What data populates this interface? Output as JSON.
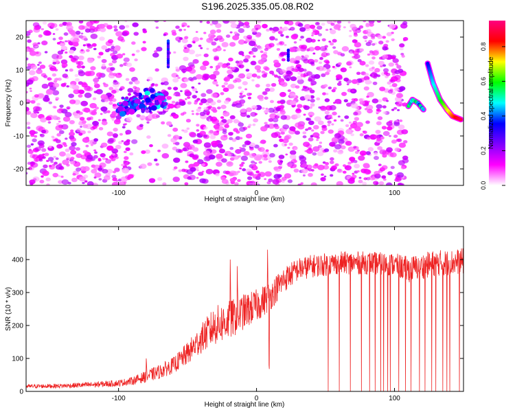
{
  "figure_title": "S196.2025.335.05.08.R02",
  "chart_data": [
    {
      "type": "heatmap",
      "title": "",
      "xlabel": "Height of straight line (km)",
      "ylabel": "Frequency (Hz)",
      "xlim": [
        -167,
        150
      ],
      "ylim": [
        -25,
        25
      ],
      "xticks": [
        -100,
        0,
        100
      ],
      "yticks": [
        -20,
        -10,
        0,
        10,
        20
      ],
      "colorbar": {
        "label": "Normalized spectral amplitude",
        "range": [
          0,
          0.95
        ],
        "ticks": [
          0.0,
          0.2,
          0.4,
          0.6,
          0.8
        ],
        "tick_labels": [
          "0.0",
          "0.2",
          "0.4",
          "0.6",
          "0.8"
        ],
        "colormap": [
          "#ffffff",
          "#ff00ff",
          "#7f00ff",
          "#0000ff",
          "#00ffff",
          "#00ff00",
          "#ffff00",
          "#ff0000",
          "#ff0080"
        ]
      },
      "features": [
        {
          "name": "background noise speckle",
          "x_range": [
            -167,
            108
          ],
          "freq_range": [
            -25,
            25
          ],
          "amplitude": 0.1
        },
        {
          "name": "blob cluster",
          "x_range": [
            -100,
            -65
          ],
          "freq_range": [
            -6,
            6
          ],
          "amplitude": 0.35
        },
        {
          "name": "narrow line",
          "x": 23,
          "freq_range": [
            13,
            16
          ],
          "amplitude": 0.3
        },
        {
          "name": "vertical line",
          "x": -64,
          "freq_range": [
            11,
            19
          ],
          "amplitude": 0.3
        },
        {
          "name": "chirp segment 1",
          "points": [
            [
              110,
              -1
            ],
            [
              113,
              1
            ],
            [
              117,
              0
            ],
            [
              121,
              -2
            ]
          ],
          "amplitude": 0.55
        },
        {
          "name": "chirp segment 2",
          "points": [
            [
              124,
              12
            ],
            [
              128,
              6
            ],
            [
              133,
              1
            ],
            [
              138,
              -2
            ],
            [
              142,
              -4
            ],
            [
              148,
              -5
            ]
          ],
          "amplitude": 0.75
        }
      ]
    },
    {
      "type": "line",
      "title": "",
      "xlabel": "Height of straight line (km)",
      "ylabel": "SNR (10 * v/v)",
      "xlim": [
        -167,
        150
      ],
      "ylim": [
        0,
        500
      ],
      "xticks": [
        -100,
        0,
        100
      ],
      "yticks": [
        0,
        100,
        200,
        300,
        400
      ],
      "series": [
        {
          "name": "SNR",
          "color": "#ee2222",
          "x": [
            -167,
            -140,
            -120,
            -100,
            -90,
            -80,
            -70,
            -60,
            -50,
            -40,
            -30,
            -20,
            -10,
            0,
            10,
            20,
            30,
            40,
            60,
            80,
            100,
            110,
            120,
            130,
            140,
            150
          ],
          "mean": [
            15,
            17,
            20,
            25,
            32,
            45,
            60,
            80,
            115,
            160,
            200,
            215,
            240,
            260,
            290,
            340,
            370,
            380,
            390,
            390,
            385,
            370,
            380,
            390,
            390,
            395
          ],
          "spread": [
            6,
            7,
            9,
            10,
            12,
            18,
            22,
            25,
            35,
            45,
            60,
            60,
            55,
            50,
            45,
            40,
            35,
            35,
            35,
            35,
            35,
            40,
            40,
            40,
            40,
            40
          ],
          "spikes": [
            {
              "x": -80,
              "y": 100
            },
            {
              "x": -19,
              "y": 400
            },
            {
              "x": -14,
              "y": 380
            },
            {
              "x": 8,
              "y": 430
            },
            {
              "x": 9,
              "y": 80
            }
          ],
          "dropouts": [
            52,
            60,
            68,
            76,
            82,
            86,
            90,
            92,
            95,
            97,
            103,
            108,
            112,
            118,
            122,
            127,
            130,
            135,
            138,
            140,
            147
          ]
        }
      ]
    }
  ]
}
